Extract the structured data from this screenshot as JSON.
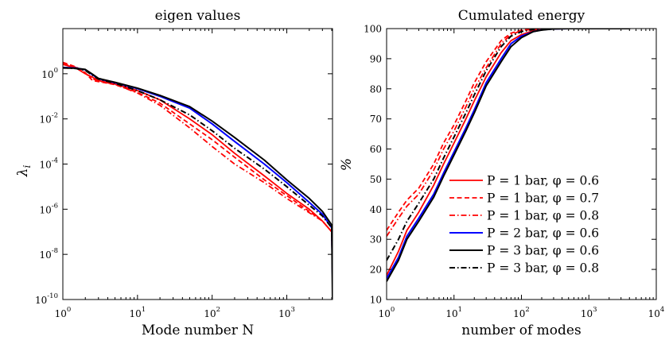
{
  "chart_data": [
    {
      "type": "line",
      "title": "eigen values",
      "xlabel": "Mode number N",
      "ylabel": "λ_i",
      "xscale": "log",
      "yscale": "log",
      "xlim": [
        1,
        4096
      ],
      "ylim": [
        1e-10,
        100
      ],
      "xticks": [
        {
          "base": "10",
          "exp": "0"
        },
        {
          "base": "10",
          "exp": "1"
        },
        {
          "base": "10",
          "exp": "2"
        },
        {
          "base": "10",
          "exp": "3"
        }
      ],
      "yticks": [
        {
          "base": "10",
          "exp": "-10"
        },
        {
          "base": "10",
          "exp": "-8"
        },
        {
          "base": "10",
          "exp": "-6"
        },
        {
          "base": "10",
          "exp": "-4"
        },
        {
          "base": "10",
          "exp": "-2"
        },
        {
          "base": "10",
          "exp": "0"
        }
      ],
      "grid": false,
      "series": [
        {
          "name": "P = 1 bar, φ = 0.6",
          "color": "#ff0000",
          "dash": "solid",
          "x": [
            1,
            1.5,
            2,
            2.5,
            3,
            5,
            10,
            20,
            50,
            100,
            200,
            500,
            1000,
            2000,
            3000,
            4000,
            4096
          ],
          "y": [
            2.6,
            1.8,
            1.0,
            0.7,
            0.5,
            0.35,
            0.18,
            0.07,
            0.01,
            0.002,
            0.0003,
            3e-05,
            5e-06,
            1e-06,
            3e-07,
            1e-07,
            1e-09
          ]
        },
        {
          "name": "P = 1 bar, φ = 0.7",
          "color": "#ff0000",
          "dash": "dashed",
          "x": [
            1,
            1.5,
            2,
            2.5,
            3,
            5,
            10,
            20,
            50,
            100,
            200,
            500,
            1000,
            2000,
            3000,
            4000,
            4096
          ],
          "y": [
            3.2,
            2.0,
            1.1,
            0.5,
            0.45,
            0.33,
            0.15,
            0.05,
            0.006,
            0.0012,
            0.0002,
            2e-05,
            4e-06,
            8e-07,
            3e-07,
            1e-07,
            4e-09
          ]
        },
        {
          "name": "P = 1 bar, φ = 0.8",
          "color": "#ff0000",
          "dash": "dashdot",
          "x": [
            1,
            1.5,
            2,
            2.5,
            3,
            5,
            10,
            20,
            50,
            100,
            200,
            500,
            1000,
            2000,
            3000,
            4000,
            4096
          ],
          "y": [
            2.8,
            1.9,
            1.05,
            0.6,
            0.48,
            0.34,
            0.14,
            0.04,
            0.004,
            0.0006,
            0.0001,
            1.5e-05,
            3e-06,
            7e-07,
            3e-07,
            1e-07,
            3e-09
          ]
        },
        {
          "name": "P = 2 bar, φ = 0.6",
          "color": "#0000ff",
          "dash": "solid",
          "x": [
            1,
            1.5,
            2,
            2.5,
            3,
            5,
            10,
            20,
            50,
            100,
            200,
            500,
            1000,
            2000,
            3000,
            4000,
            4096
          ],
          "y": [
            1.9,
            1.8,
            1.5,
            0.9,
            0.6,
            0.4,
            0.22,
            0.1,
            0.03,
            0.006,
            0.001,
            0.0001,
            1.5e-05,
            2e-06,
            6e-07,
            1.5e-07,
            1e-09
          ]
        },
        {
          "name": "P = 3 bar, φ = 0.6",
          "color": "#000000",
          "dash": "solid",
          "x": [
            1,
            1.5,
            2,
            2.5,
            3,
            5,
            10,
            20,
            50,
            100,
            200,
            500,
            1000,
            2000,
            3000,
            4000,
            4096
          ],
          "y": [
            1.8,
            1.75,
            1.55,
            0.95,
            0.62,
            0.42,
            0.23,
            0.11,
            0.035,
            0.008,
            0.0015,
            0.00015,
            2e-05,
            3e-06,
            8e-07,
            2e-07,
            1e-10
          ]
        },
        {
          "name": "P = 3 bar, φ = 0.8",
          "color": "#000000",
          "dash": "dashdot",
          "x": [
            1,
            1.5,
            2,
            2.5,
            3,
            5,
            10,
            20,
            50,
            100,
            200,
            500,
            1000,
            2000,
            3000,
            4000,
            4096
          ],
          "y": [
            1.85,
            1.7,
            1.4,
            0.85,
            0.58,
            0.38,
            0.18,
            0.07,
            0.015,
            0.003,
            0.0005,
            6e-05,
            1e-05,
            1.5e-06,
            5e-07,
            1.5e-07,
            2e-09
          ]
        }
      ]
    },
    {
      "type": "line",
      "title": "Cumulated energy",
      "xlabel": "number of modes",
      "ylabel": "%",
      "xscale": "log",
      "yscale": "linear",
      "xlim": [
        1,
        10000
      ],
      "ylim": [
        10,
        100
      ],
      "xticks": [
        {
          "base": "10",
          "exp": "0"
        },
        {
          "base": "10",
          "exp": "1"
        },
        {
          "base": "10",
          "exp": "2"
        },
        {
          "base": "10",
          "exp": "3"
        },
        {
          "base": "10",
          "exp": "4"
        }
      ],
      "yticks": [
        "10",
        "20",
        "30",
        "40",
        "50",
        "60",
        "70",
        "80",
        "90",
        "100"
      ],
      "grid": false,
      "legend": "lower-right",
      "series": [
        {
          "name": "P = 1 bar, φ = 0.6",
          "color": "#ff0000",
          "dash": "solid",
          "x": [
            1,
            1.5,
            2,
            3,
            5,
            7,
            10,
            15,
            20,
            30,
            50,
            70,
            100,
            150,
            200,
            300,
            500,
            1000,
            4096
          ],
          "y": [
            18,
            26,
            33,
            39,
            48,
            55,
            62,
            70,
            76,
            84,
            92,
            96,
            98,
            99.3,
            99.7,
            99.9,
            100,
            100,
            100
          ]
        },
        {
          "name": "P = 1 bar, φ = 0.7",
          "color": "#ff0000",
          "dash": "dashed",
          "x": [
            1,
            1.5,
            2,
            3,
            5,
            7,
            10,
            15,
            20,
            30,
            50,
            70,
            100,
            150,
            200,
            300,
            500,
            1000,
            4096
          ],
          "y": [
            33,
            39,
            43,
            47,
            55,
            62,
            68,
            76,
            82,
            89,
            96,
            98.5,
            99.5,
            99.8,
            99.9,
            100,
            100,
            100,
            100
          ]
        },
        {
          "name": "P = 1 bar, φ = 0.8",
          "color": "#ff0000",
          "dash": "dashdot",
          "x": [
            1,
            1.5,
            2,
            3,
            5,
            7,
            10,
            15,
            20,
            30,
            50,
            70,
            100,
            150,
            200,
            300,
            500,
            1000,
            4096
          ],
          "y": [
            31,
            37,
            41,
            45,
            53,
            60,
            66,
            74,
            80,
            87,
            95,
            98,
            99.3,
            99.8,
            99.9,
            100,
            100,
            100,
            100
          ]
        },
        {
          "name": "P = 2 bar, φ = 0.6",
          "color": "#0000ff",
          "dash": "solid",
          "x": [
            1,
            1.5,
            2,
            3,
            5,
            7,
            10,
            15,
            20,
            30,
            50,
            70,
            100,
            150,
            200,
            300,
            500,
            1000,
            4096
          ],
          "y": [
            17,
            24,
            31,
            37,
            45,
            52,
            59,
            67,
            73,
            82,
            90,
            95,
            97.5,
            99,
            99.6,
            99.9,
            100,
            100,
            100
          ]
        },
        {
          "name": "P = 3 bar, φ = 0.6",
          "color": "#000000",
          "dash": "solid",
          "x": [
            1,
            1.5,
            2,
            3,
            5,
            7,
            10,
            15,
            20,
            30,
            50,
            70,
            100,
            150,
            200,
            300,
            500,
            1000,
            4096
          ],
          "y": [
            16,
            23,
            30,
            36,
            44,
            51,
            58,
            66,
            72,
            81,
            89,
            94,
            97,
            99,
            99.5,
            99.9,
            100,
            100,
            100
          ]
        },
        {
          "name": "P = 3 bar, φ = 0.8",
          "color": "#000000",
          "dash": "dashdot",
          "x": [
            1,
            1.5,
            2,
            3,
            5,
            7,
            10,
            15,
            20,
            30,
            50,
            70,
            100,
            150,
            200,
            300,
            500,
            1000,
            4096
          ],
          "y": [
            23,
            30,
            36,
            42,
            50,
            57,
            64,
            72,
            78,
            86,
            94,
            97.5,
            99,
            99.7,
            99.9,
            100,
            100,
            100,
            100
          ]
        }
      ]
    }
  ]
}
